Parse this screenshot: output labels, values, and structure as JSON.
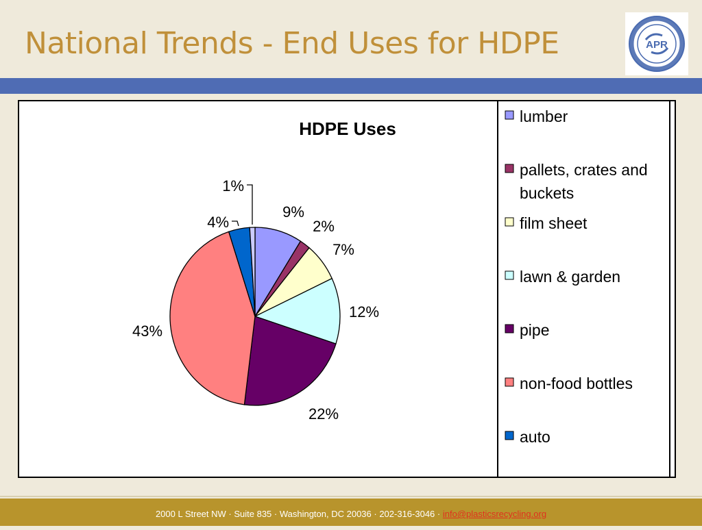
{
  "slide": {
    "title": "National Trends - End Uses for HDPE"
  },
  "footer": {
    "address": "2000 L Street NW · Suite 835 · Washington, DC 20036 · 202-316-3046 · ",
    "email": "info@plasticsrecycling.org"
  },
  "logo": {
    "ring_text": "ASSOCIATION OF POSTCONSUMER PLASTIC RECYCLERS",
    "letters": "APR"
  },
  "colors": {
    "title": "#c0903a",
    "title_bar": "#4f6cb4",
    "footer": "#b8942c",
    "background": "#efeadb"
  },
  "chart_data": {
    "type": "pie",
    "title": "HDPE Uses",
    "legend_position": "right",
    "slices": [
      {
        "label": "lumber",
        "value": 9,
        "display": "9%",
        "color": "#9999ff"
      },
      {
        "label": "pallets, crates and buckets",
        "value": 2,
        "display": "2%",
        "color": "#993366"
      },
      {
        "label": "film sheet",
        "value": 7,
        "display": "7%",
        "color": "#ffffcc"
      },
      {
        "label": "lawn & garden",
        "value": 12,
        "display": "12%",
        "color": "#ccffff"
      },
      {
        "label": "pipe",
        "value": 22,
        "display": "22%",
        "color": "#660066"
      },
      {
        "label": "non-food bottles",
        "value": 43,
        "display": "43%",
        "color": "#ff8080"
      },
      {
        "label": "auto",
        "value": 4,
        "display": "4%",
        "color": "#0066cc"
      },
      {
        "label": "",
        "value": 1,
        "display": "1%",
        "color": "#ccccff"
      }
    ]
  }
}
